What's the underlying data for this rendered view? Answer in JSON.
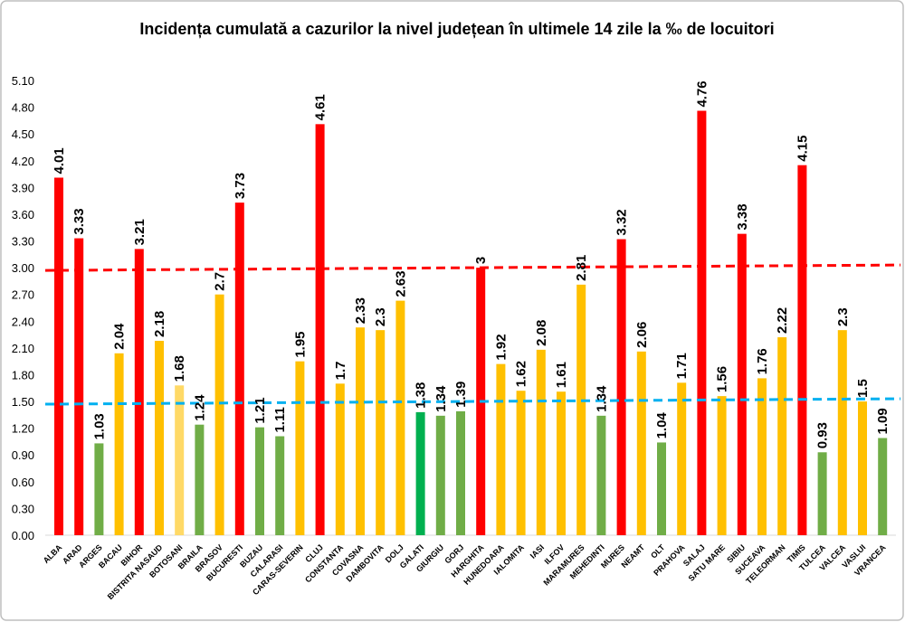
{
  "chart_data": {
    "type": "bar",
    "title": "Incidența cumulată a cazurilor la nivel județean în ultimele 14 zile la ‰ de locuitori",
    "xlabel": "",
    "ylabel": "",
    "ylim": [
      0,
      5.1
    ],
    "yticks": [
      "0.00",
      "0.30",
      "0.60",
      "0.90",
      "1.20",
      "1.50",
      "1.80",
      "2.10",
      "2.40",
      "2.70",
      "3.00",
      "3.30",
      "3.60",
      "3.90",
      "4.20",
      "4.50",
      "4.80",
      "5.10"
    ],
    "grid": false,
    "categories": [
      "ALBA",
      "ARAD",
      "ARGES",
      "BACAU",
      "BIHOR",
      "BISTRITA NASAUD",
      "BOTOSANI",
      "BRAILA",
      "BRASOV",
      "BUCURESTI",
      "BUZAU",
      "CALARASI",
      "CARAS-SEVERIN",
      "CLUJ",
      "CONSTANTA",
      "COVASNA",
      "DAMBOVITA",
      "DOLJ",
      "GALATI",
      "GIURGIU",
      "GORJ",
      "HARGHITA",
      "HUNEDOARA",
      "IALOMITA",
      "IASI",
      "ILFOV",
      "MARAMURES",
      "MEHEDINTI",
      "MURES",
      "NEAMT",
      "OLT",
      "PRAHOVA",
      "SALAJ",
      "SATU MARE",
      "SIBIU",
      "SUCEAVA",
      "TELEORMAN",
      "TIMIS",
      "TULCEA",
      "VALCEA",
      "VASLUI",
      "VRANCEA"
    ],
    "values": [
      4.01,
      3.33,
      1.03,
      2.04,
      3.21,
      2.18,
      1.68,
      1.24,
      2.7,
      3.73,
      1.21,
      1.11,
      1.95,
      4.61,
      1.7,
      2.33,
      2.3,
      2.63,
      1.38,
      1.34,
      1.39,
      3,
      1.92,
      1.62,
      2.08,
      1.61,
      2.81,
      1.34,
      3.32,
      2.06,
      1.04,
      1.71,
      4.76,
      1.56,
      3.38,
      1.76,
      2.22,
      4.15,
      0.93,
      2.3,
      1.5,
      1.09
    ],
    "data_labels": [
      "4.01",
      "3.33",
      "1.03",
      "2.04",
      "3.21",
      "2.18",
      "1.68",
      "1.24",
      "2.7",
      "3.73",
      "1.21",
      "1.11",
      "1.95",
      "4.61",
      "1.7",
      "2.33",
      "2.3",
      "2.63",
      "1.38",
      "1.34",
      "1.39",
      "3",
      "1.92",
      "1.62",
      "2.08",
      "1.61",
      "2.81",
      "1.34",
      "3.32",
      "2.06",
      "1.04",
      "1.71",
      "4.76",
      "1.56",
      "3.38",
      "1.76",
      "2.22",
      "4.15",
      "0.93",
      "2.3",
      "1.5",
      "1.09"
    ],
    "bar_colors": [
      "#ff0000",
      "#ff0000",
      "#70ad47",
      "#ffc000",
      "#ff0000",
      "#ffc000",
      "#ffd966",
      "#70ad47",
      "#ffc000",
      "#ff0000",
      "#70ad47",
      "#70ad47",
      "#ffc000",
      "#ff0000",
      "#ffc000",
      "#ffc000",
      "#ffc000",
      "#ffc000",
      "#00b050",
      "#70ad47",
      "#70ad47",
      "#ff0000",
      "#ffc000",
      "#ffc000",
      "#ffc000",
      "#ffc000",
      "#ffc000",
      "#70ad47",
      "#ff0000",
      "#ffc000",
      "#70ad47",
      "#ffc000",
      "#ff0000",
      "#ffc000",
      "#ff0000",
      "#ffc000",
      "#ffc000",
      "#ff0000",
      "#70ad47",
      "#ffc000",
      "#ffc000",
      "#70ad47"
    ],
    "reference_lines": [
      {
        "value": 3.0,
        "color": "#ff0000",
        "style": "dashed"
      },
      {
        "value": 1.5,
        "color": "#00b0f0",
        "style": "dashed"
      }
    ]
  }
}
